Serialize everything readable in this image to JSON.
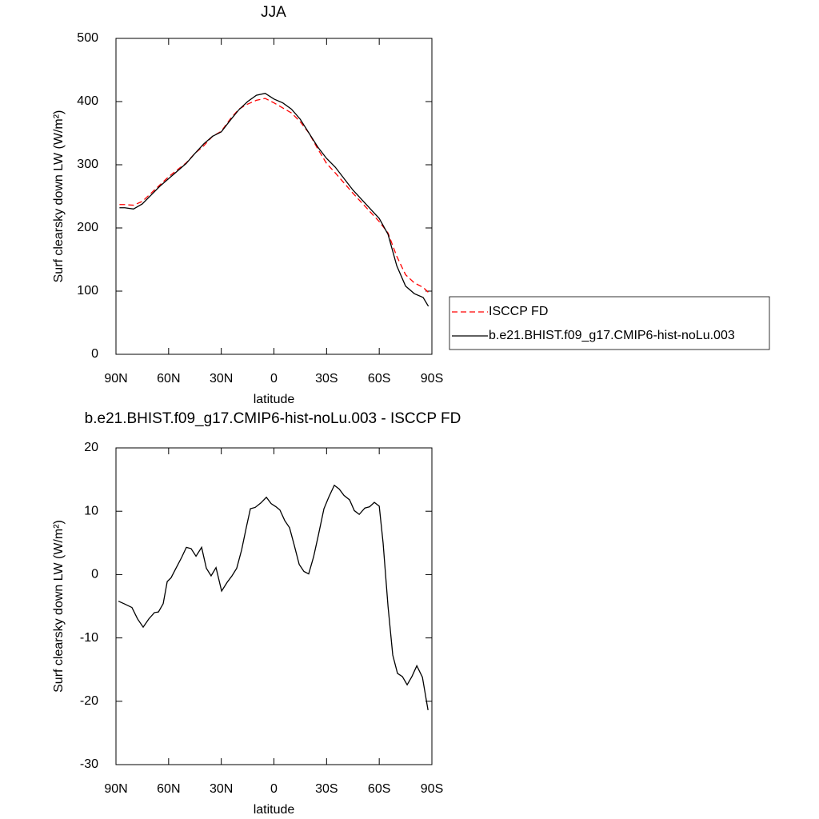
{
  "chart_data": [
    {
      "type": "line",
      "title": "JJA",
      "xlabel": "latitude",
      "ylabel": "Surf clearsky down LW (W/m²)",
      "x": [
        88,
        85,
        80,
        75,
        70,
        65,
        60,
        55,
        50,
        45,
        40,
        35,
        30,
        25,
        20,
        15,
        10,
        5,
        0,
        -5,
        -10,
        -15,
        -20,
        -25,
        -30,
        -35,
        -40,
        -45,
        -50,
        -55,
        -60,
        -65,
        -70,
        -75,
        -80,
        -85,
        -88
      ],
      "series": [
        {
          "name": "ISCCP FD",
          "color": "#ff0000",
          "style": "dashed",
          "values": [
            237,
            237,
            236,
            242,
            255,
            268,
            281,
            292,
            303,
            318,
            330,
            345,
            353,
            372,
            388,
            396,
            402,
            405,
            398,
            390,
            382,
            368,
            350,
            325,
            302,
            287,
            271,
            255,
            240,
            225,
            210,
            192,
            155,
            126,
            113,
            106,
            98
          ]
        },
        {
          "name": "b.e21.BHIST.f09_g17.CMIP6-hist-noLu.003",
          "color": "#000000",
          "style": "solid",
          "values": [
            232,
            232,
            230,
            238,
            252,
            266,
            278,
            290,
            302,
            318,
            333,
            345,
            352,
            370,
            387,
            400,
            410,
            413,
            404,
            398,
            388,
            372,
            350,
            328,
            310,
            296,
            278,
            260,
            245,
            230,
            215,
            190,
            140,
            108,
            96,
            90,
            76
          ]
        }
      ],
      "xlim": [
        90,
        -90
      ],
      "xticks": [
        {
          "value": 90,
          "label": "90N"
        },
        {
          "value": 60,
          "label": "60N"
        },
        {
          "value": 30,
          "label": "30N"
        },
        0,
        {
          "value": -30,
          "label": "30S"
        },
        {
          "value": -60,
          "label": "60S"
        },
        {
          "value": -90,
          "label": "90S"
        }
      ],
      "ylim": [
        0,
        500
      ],
      "yticks": [
        0,
        100,
        200,
        300,
        400,
        500
      ],
      "legend": "right"
    },
    {
      "type": "line",
      "title": "b.e21.BHIST.f09_g17.CMIP6-hist-noLu.003 - ISCCP FD",
      "xlabel": "latitude",
      "ylabel": "Surf clearsky down LW (W/m²)",
      "x": [
        88.6,
        85.4,
        80.9,
        77.7,
        74.5,
        71.3,
        68.1,
        65.8,
        63.1,
        60.8,
        58.6,
        55.8,
        52.6,
        49.9,
        47.2,
        44.4,
        41.2,
        38.5,
        35.8,
        33.0,
        29.8,
        26.6,
        23.9,
        21.2,
        18.4,
        15.7,
        13.4,
        10.7,
        7.5,
        4.3,
        1.6,
        -1.2,
        -3.4,
        -6.2,
        -8.9,
        -11.6,
        -14.4,
        -17.1,
        -19.8,
        -22.6,
        -25.3,
        -28.5,
        -31.2,
        -34.4,
        -37.2,
        -39.9,
        -43.1,
        -45.8,
        -48.6,
        -51.8,
        -54.5,
        -57.2,
        -60.0,
        -62.2,
        -65.0,
        -67.7,
        -70.4,
        -73.2,
        -75.9,
        -78.6,
        -81.4,
        -84.6,
        -87.8
      ],
      "values": [
        -4.2,
        -4.6,
        -5.2,
        -7,
        -8.3,
        -7,
        -6,
        -5.9,
        -4.6,
        -1.1,
        -0.5,
        1,
        2.7,
        4.3,
        4.1,
        2.9,
        4.3,
        1,
        -0.2,
        1.1,
        -2.6,
        -1.2,
        -0.2,
        1,
        3.9,
        7.5,
        10.4,
        10.6,
        11.3,
        12.2,
        11.2,
        10.7,
        10.2,
        8.5,
        7.4,
        4.6,
        1.6,
        0.5,
        0.1,
        2.8,
        6.2,
        10.4,
        12.2,
        14.1,
        13.5,
        12.5,
        11.8,
        10.1,
        9.5,
        10.5,
        10.7,
        11.4,
        10.8,
        5,
        -5,
        -12.7,
        -15.6,
        -16.1,
        -17.4,
        -16.1,
        -14.4,
        -16.2,
        -21.4
      ],
      "color": "#000000",
      "xlim": [
        90,
        -90
      ],
      "xticks": [
        {
          "value": 90,
          "label": "90N"
        },
        {
          "value": 60,
          "label": "60N"
        },
        {
          "value": 30,
          "label": "30N"
        },
        0,
        {
          "value": -30,
          "label": "30S"
        },
        {
          "value": -60,
          "label": "60S"
        },
        {
          "value": -90,
          "label": "90S"
        }
      ],
      "ylim": [
        -30,
        20
      ],
      "yticks": [
        -30,
        -20,
        -10,
        0,
        10,
        20
      ]
    }
  ]
}
